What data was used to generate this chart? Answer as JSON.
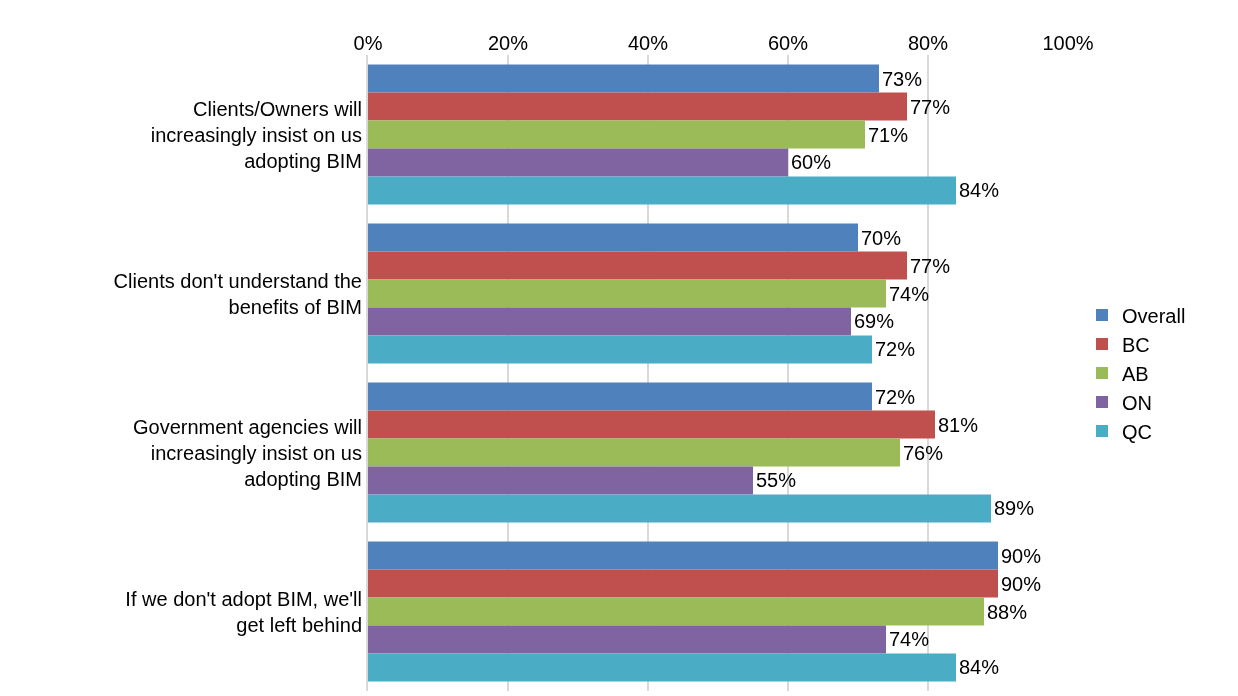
{
  "chart_data": {
    "type": "bar",
    "orientation": "horizontal",
    "categories": [
      "Clients/Owners will increasingly insist on us adopting BIM",
      "Clients don't understand the benefits of BIM",
      "Government agencies will increasingly insist on us adopting BIM",
      "If we don't adopt BIM, we'll get left behind"
    ],
    "series": [
      {
        "name": "Overall",
        "color": "#4f81bd",
        "values": [
          73,
          70,
          72,
          90
        ],
        "value_labels": [
          "73%",
          "70%",
          "72%",
          "90%"
        ]
      },
      {
        "name": "BC",
        "color": "#c0504d",
        "values": [
          77,
          77,
          81,
          90
        ],
        "value_labels": [
          "77%",
          "77%",
          "81%",
          "90%"
        ]
      },
      {
        "name": "AB",
        "color": "#9bbb59",
        "values": [
          71,
          74,
          76,
          88
        ],
        "value_labels": [
          "71%",
          "74%",
          "76%",
          "88%"
        ]
      },
      {
        "name": "ON",
        "color": "#8064a2",
        "values": [
          60,
          69,
          55,
          74
        ],
        "value_labels": [
          "60%",
          "69%",
          "55%",
          "74%"
        ]
      },
      {
        "name": "QC",
        "color": "#4bacc6",
        "values": [
          84,
          72,
          89,
          84
        ],
        "value_labels": [
          "84%",
          "72%",
          "89%",
          "84%"
        ]
      }
    ],
    "xlim": [
      0,
      100
    ],
    "xticks": [
      {
        "value": 0,
        "label": "0%"
      },
      {
        "value": 20,
        "label": "20%"
      },
      {
        "value": 40,
        "label": "40%"
      },
      {
        "value": 60,
        "label": "60%"
      },
      {
        "value": 80,
        "label": "80%"
      },
      {
        "value": 100,
        "label": "100%"
      }
    ],
    "grid": "x",
    "legend": "right"
  }
}
